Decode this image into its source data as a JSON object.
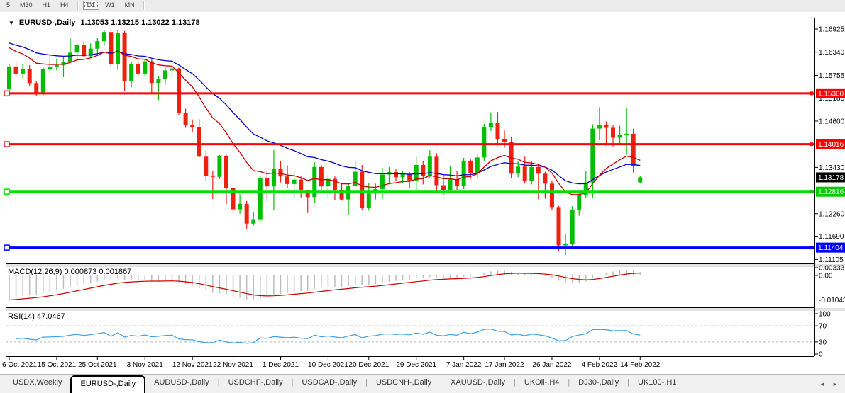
{
  "ui": {
    "toolbar": {
      "timeframes": [
        "5",
        "M30",
        "H1",
        "H4",
        "D1",
        "W1",
        "MN"
      ],
      "active": "D1",
      "separators_after": [
        "H4",
        "MN"
      ]
    },
    "chart_title": {
      "symbol": "EURUSD-,Daily",
      "values": "1.13053 1.13215 1.13022 1.13178"
    },
    "icons": {
      "title_arrow": "▼",
      "tab_scroll_left": "◄",
      "tab_scroll_right": "►"
    },
    "macd_label": "MACD(12,26,9) 0.000873 0.001867",
    "rsi_label": "RSI(14) 47.0467",
    "tabs": [
      {
        "label": "USDX,Weekly",
        "active": false
      },
      {
        "label": "EURUSD-,Daily",
        "active": true
      },
      {
        "label": "AUDUSD-,Daily",
        "active": false
      },
      {
        "label": "USDCHF-,Daily",
        "active": false
      },
      {
        "label": "USDCAD-,Daily",
        "active": false
      },
      {
        "label": "USDCNH-,Daily",
        "active": false
      },
      {
        "label": "XAUUSD-,Daily",
        "active": false
      },
      {
        "label": "UKOil-,H4",
        "active": false
      },
      {
        "label": "DJ30-,Daily",
        "active": false
      },
      {
        "label": "UK100-,H1",
        "active": false
      }
    ]
  },
  "chart_data": [
    {
      "type": "candlestick",
      "title": "EURUSD-,Daily",
      "ohlc_readout": {
        "open": "1.13053",
        "high": "1.13215",
        "low": "1.13022",
        "close": "1.13178"
      },
      "current_price": 1.13178,
      "colors": {
        "up": "#00bf00",
        "down": "#ee2010"
      },
      "y_ticks": [
        "1.16925",
        "1.16340",
        "1.15755",
        "1.15185",
        "1.14600",
        "1.13430",
        "1.12260",
        "1.11690",
        "1.11105"
      ],
      "price_axis_badges": [
        {
          "label": "1.15300",
          "color": "#ff0000",
          "has_handle": true
        },
        {
          "label": "1.14016",
          "color": "#ff0000",
          "has_handle": true
        },
        {
          "label": "1.13178",
          "color": "#000000",
          "has_handle": false
        },
        {
          "label": "1.12816",
          "color": "#00cc00",
          "has_handle": true
        },
        {
          "label": "1.11404",
          "color": "#0000ff",
          "has_handle": true
        }
      ],
      "horizontal_lines": [
        {
          "price": 1.153,
          "color": "#ff0000"
        },
        {
          "price": 1.14016,
          "color": "#ff0000"
        },
        {
          "price": 1.12816,
          "color": "#00e000"
        },
        {
          "price": 1.11404,
          "color": "#0000ff"
        }
      ],
      "moving_averages": [
        {
          "type": "ema",
          "period": 26,
          "color": "#0000cc",
          "seed": 1.1662
        },
        {
          "type": "ema",
          "period": 13,
          "color": "#cc0000",
          "seed": 1.1653
        }
      ],
      "x_ticks": {
        "labels": [
          "6 Oct 2021",
          "15 Oct 2021",
          "25 Oct 2021",
          "3 Nov 2021",
          "12 Nov 2021",
          "22 Nov 2021",
          "1 Dec 2021",
          "10 Dec 2021",
          "20 Dec 2021",
          "29 Dec 2021",
          "7 Jan 2022",
          "17 Jan 2022",
          "26 Jan 2022",
          "4 Feb 2022",
          "14 Feb 2022"
        ],
        "candle_index": [
          0,
          7,
          13,
          20,
          27,
          33,
          40,
          47,
          53,
          60,
          67,
          73,
          80,
          87,
          93
        ]
      },
      "candles": [
        [
          1.154,
          1.1605,
          1.1529,
          1.1598
        ],
        [
          1.1598,
          1.1611,
          1.1572,
          1.158
        ],
        [
          1.158,
          1.1605,
          1.1568,
          1.1592
        ],
        [
          1.1592,
          1.1601,
          1.1549,
          1.1556
        ],
        [
          1.1556,
          1.1562,
          1.1524,
          1.153
        ],
        [
          1.153,
          1.1597,
          1.1525,
          1.1592
        ],
        [
          1.1592,
          1.1624,
          1.1582,
          1.1596
        ],
        [
          1.1596,
          1.1618,
          1.1588,
          1.1601
        ],
        [
          1.1601,
          1.1621,
          1.1571,
          1.161
        ],
        [
          1.161,
          1.1669,
          1.1609,
          1.1633
        ],
        [
          1.1633,
          1.1658,
          1.1617,
          1.1652
        ],
        [
          1.1652,
          1.1659,
          1.1622,
          1.1624
        ],
        [
          1.1624,
          1.1656,
          1.1621,
          1.1643
        ],
        [
          1.1643,
          1.167,
          1.1628,
          1.1662
        ],
        [
          1.1662,
          1.1689,
          1.165,
          1.1685
        ],
        [
          1.1685,
          1.1692,
          1.1597,
          1.1603
        ],
        [
          1.1603,
          1.169,
          1.1589,
          1.1683
        ],
        [
          1.1683,
          1.1688,
          1.1535,
          1.156
        ],
        [
          1.156,
          1.1609,
          1.1545,
          1.1605
        ],
        [
          1.1605,
          1.1613,
          1.1575,
          1.158
        ],
        [
          1.158,
          1.1616,
          1.1572,
          1.1611
        ],
        [
          1.1611,
          1.1617,
          1.1528,
          1.1556
        ],
        [
          1.1556,
          1.1573,
          1.1513,
          1.1567
        ],
        [
          1.1567,
          1.1594,
          1.1552,
          1.1588
        ],
        [
          1.1588,
          1.1608,
          1.157,
          1.1593
        ],
        [
          1.1593,
          1.1595,
          1.1475,
          1.148
        ],
        [
          1.148,
          1.1491,
          1.1443,
          1.1451
        ],
        [
          1.1451,
          1.1464,
          1.1432,
          1.1445
        ],
        [
          1.1445,
          1.1465,
          1.1368,
          1.137
        ],
        [
          1.137,
          1.1386,
          1.1309,
          1.1321
        ],
        [
          1.1321,
          1.1333,
          1.1263,
          1.1319
        ],
        [
          1.1319,
          1.1374,
          1.1314,
          1.1371
        ],
        [
          1.1371,
          1.1375,
          1.125,
          1.129
        ],
        [
          1.129,
          1.1292,
          1.1226,
          1.1237
        ],
        [
          1.1237,
          1.1275,
          1.1226,
          1.1251
        ],
        [
          1.1251,
          1.1258,
          1.1186,
          1.1201
        ],
        [
          1.1201,
          1.123,
          1.1196,
          1.1212
        ],
        [
          1.1212,
          1.1323,
          1.1206,
          1.1316
        ],
        [
          1.1316,
          1.1336,
          1.1258,
          1.1295
        ],
        [
          1.1295,
          1.1387,
          1.1235,
          1.134
        ],
        [
          1.134,
          1.136,
          1.1305,
          1.132
        ],
        [
          1.132,
          1.1348,
          1.129,
          1.1301
        ],
        [
          1.1301,
          1.1334,
          1.1266,
          1.1312
        ],
        [
          1.1312,
          1.132,
          1.1267,
          1.1285
        ],
        [
          1.1285,
          1.1286,
          1.1228,
          1.1268
        ],
        [
          1.1268,
          1.1356,
          1.1253,
          1.1344
        ],
        [
          1.1344,
          1.1349,
          1.128,
          1.1295
        ],
        [
          1.1295,
          1.1324,
          1.1264,
          1.1314
        ],
        [
          1.1314,
          1.132,
          1.126,
          1.1285
        ],
        [
          1.1285,
          1.1303,
          1.1259,
          1.1262
        ],
        [
          1.1262,
          1.1304,
          1.1222,
          1.1297
        ],
        [
          1.1297,
          1.136,
          1.1296,
          1.1332
        ],
        [
          1.1332,
          1.1349,
          1.1236,
          1.124
        ],
        [
          1.124,
          1.1304,
          1.1234,
          1.1277
        ],
        [
          1.1277,
          1.1302,
          1.1262,
          1.1288
        ],
        [
          1.1288,
          1.1342,
          1.1262,
          1.1325
        ],
        [
          1.1325,
          1.1344,
          1.13,
          1.1331
        ],
        [
          1.1331,
          1.1338,
          1.1308,
          1.1318
        ],
        [
          1.1318,
          1.1333,
          1.1304,
          1.1326
        ],
        [
          1.1326,
          1.1331,
          1.129,
          1.131
        ],
        [
          1.131,
          1.1369,
          1.1286,
          1.1349
        ],
        [
          1.1349,
          1.136,
          1.13,
          1.1321
        ],
        [
          1.1321,
          1.1386,
          1.1317,
          1.137
        ],
        [
          1.137,
          1.1379,
          1.1279,
          1.1298
        ],
        [
          1.1298,
          1.1324,
          1.1272,
          1.1286
        ],
        [
          1.1286,
          1.1347,
          1.1284,
          1.1313
        ],
        [
          1.1313,
          1.1333,
          1.1285,
          1.1296
        ],
        [
          1.1296,
          1.1367,
          1.1288,
          1.136
        ],
        [
          1.136,
          1.1363,
          1.1314,
          1.1329
        ],
        [
          1.1329,
          1.1375,
          1.1315,
          1.1368
        ],
        [
          1.1368,
          1.1453,
          1.136,
          1.1444
        ],
        [
          1.1444,
          1.1482,
          1.1435,
          1.1456
        ],
        [
          1.1456,
          1.1483,
          1.1398,
          1.1415
        ],
        [
          1.1415,
          1.1436,
          1.1393,
          1.1407
        ],
        [
          1.1407,
          1.1421,
          1.1315,
          1.1327
        ],
        [
          1.1327,
          1.1358,
          1.1318,
          1.1345
        ],
        [
          1.1345,
          1.137,
          1.1302,
          1.1309
        ],
        [
          1.1309,
          1.136,
          1.13,
          1.1344
        ],
        [
          1.1344,
          1.135,
          1.1262,
          1.1327
        ],
        [
          1.1327,
          1.1332,
          1.1264,
          1.1302
        ],
        [
          1.1302,
          1.131,
          1.1234,
          1.1241
        ],
        [
          1.1241,
          1.1246,
          1.1131,
          1.1146
        ],
        [
          1.1146,
          1.1175,
          1.1121,
          1.1149
        ],
        [
          1.1149,
          1.1245,
          1.1141,
          1.1236
        ],
        [
          1.1236,
          1.1279,
          1.1221,
          1.1274
        ],
        [
          1.1274,
          1.1333,
          1.1267,
          1.1305
        ],
        [
          1.1305,
          1.1452,
          1.1267,
          1.1441
        ],
        [
          1.1441,
          1.1495,
          1.1412,
          1.1451
        ],
        [
          1.1451,
          1.1459,
          1.1398,
          1.1443
        ],
        [
          1.1443,
          1.1449,
          1.1396,
          1.1418
        ],
        [
          1.1418,
          1.1448,
          1.1402,
          1.1426
        ],
        [
          1.1426,
          1.1494,
          1.1375,
          1.1428
        ],
        [
          1.1428,
          1.1441,
          1.133,
          1.1347
        ],
        [
          1.13053,
          1.13215,
          1.13022,
          1.13178
        ]
      ]
    },
    {
      "type": "bar",
      "title": "MACD(12,26,9)",
      "current_values": [
        "0.000873",
        "0.001867"
      ],
      "params": {
        "fast": 12,
        "slow": 26,
        "signal": 9
      },
      "y_axis_labels": [
        {
          "text": "0.003331",
          "value": 0.003331
        },
        {
          "text": "0.00",
          "value": 0.0
        },
        {
          "text": "-0.010437",
          "value": -0.010437
        }
      ],
      "histogram_color": "#bdbdbd",
      "signal_color": "#cc0000",
      "seeds": {
        "ema_fast": 1.16,
        "ema_slow": 1.171,
        "signal": -0.0105
      }
    },
    {
      "type": "line",
      "title": "RSI(14)",
      "period": 14,
      "current_value": "47.0467",
      "levels": [
        70,
        30
      ],
      "y_axis_labels": [
        {
          "text": "100",
          "value": 100
        },
        {
          "text": "70",
          "value": 70
        },
        {
          "text": "30",
          "value": 30
        },
        {
          "text": "0",
          "value": 0
        }
      ],
      "line_color": "#3e9fe8",
      "seeds": {
        "avg_gain": 0.0018,
        "avg_loss": 0.0028
      }
    }
  ]
}
